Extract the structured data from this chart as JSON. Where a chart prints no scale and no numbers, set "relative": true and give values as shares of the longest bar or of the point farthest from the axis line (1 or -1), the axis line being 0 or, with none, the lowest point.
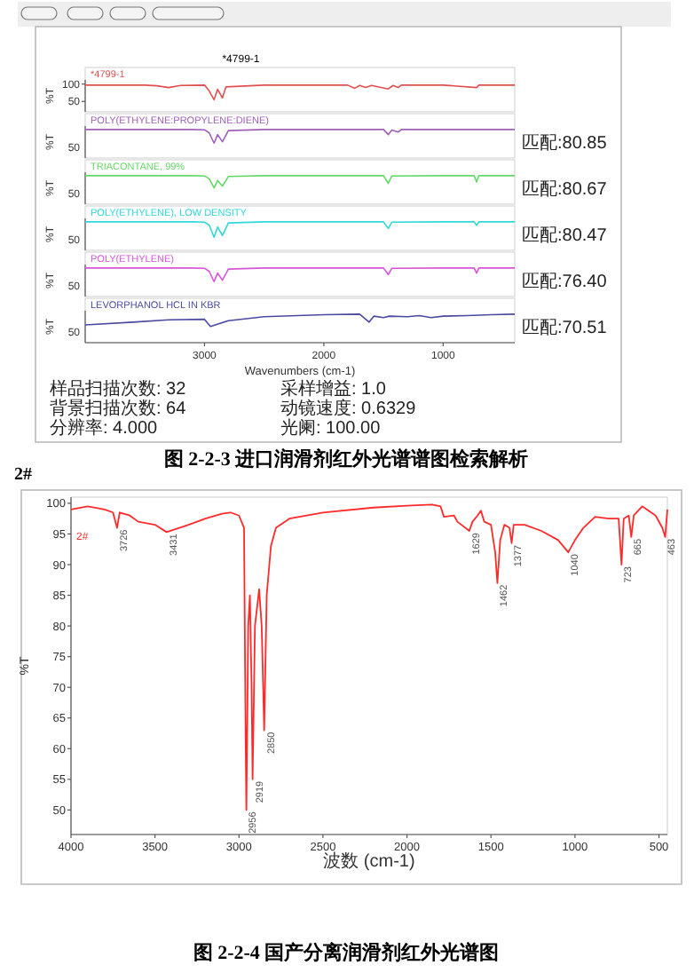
{
  "chart_data": [
    {
      "type": "line",
      "title": "*4799-1",
      "xlim": [
        4000,
        400
      ],
      "ylim": [
        20,
        112
      ],
      "yticks": [
        50,
        100
      ],
      "ylabel": "%T",
      "tick_labels": "y",
      "legend": "top left",
      "series": [
        {
          "name": "*4799-1",
          "color": "#e05050",
          "x": [
            4000,
            3500,
            3400,
            3300,
            3200,
            3000,
            2960,
            2920,
            2890,
            2850,
            2820,
            2500,
            1800,
            1740,
            1700,
            1650,
            1600,
            1460,
            1420,
            1377,
            1350,
            1000,
            720,
            700,
            400
          ],
          "values": [
            97,
            97,
            95,
            90,
            96,
            97,
            80,
            55,
            85,
            60,
            92,
            97,
            97,
            88,
            96,
            90,
            96,
            86,
            96,
            90,
            97,
            97,
            90,
            97,
            97
          ]
        }
      ],
      "annotations": [
        "样品扫描次数: 32",
        "背景扫描次数: 64",
        "分辨率: 4.000",
        "采样增益: 1.0",
        "动镜速度: 0.6329",
        "光阑: 100.00",
        "图 2-2-3 进口润滑剂红外光谱谱图检索解析"
      ]
    },
    {
      "type": "line",
      "relative": true,
      "xlim": [
        4000,
        400
      ],
      "ylabel": "%T",
      "tick_labels": "y",
      "legend": "top left",
      "series": [
        {
          "name": "POLY(ETHYLENE:PROPYLENE:DIENE)",
          "color": "#a060b8",
          "x": [
            4000,
            3100,
            3000,
            2960,
            2920,
            2890,
            2850,
            2800,
            2500,
            1500,
            1460,
            1430,
            1377,
            1350,
            400
          ],
          "values": [
            1,
            1,
            0.99,
            0.88,
            0.52,
            0.82,
            0.57,
            0.96,
            1,
            1,
            0.82,
            0.98,
            0.91,
            1,
            1
          ]
        }
      ],
      "annotations": [
        "50",
        "匹配:80.85"
      ]
    },
    {
      "type": "line",
      "relative": true,
      "xlim": [
        4000,
        400
      ],
      "ylabel": "%T",
      "tick_labels": "y",
      "legend": "top left",
      "series": [
        {
          "name": "TRIACONTANE, 99%",
          "color": "#66d866",
          "x": [
            4000,
            3100,
            3000,
            2960,
            2920,
            2890,
            2850,
            2800,
            2500,
            1500,
            1460,
            1430,
            1000,
            740,
            720,
            700,
            400
          ],
          "values": [
            1,
            1,
            0.99,
            0.89,
            0.57,
            0.83,
            0.63,
            0.97,
            1,
            1,
            0.73,
            0.99,
            1,
            1,
            0.78,
            1,
            1
          ]
        }
      ],
      "annotations": [
        "50",
        "匹配:80.67"
      ]
    },
    {
      "type": "line",
      "relative": true,
      "xlim": [
        4000,
        400
      ],
      "ylabel": "%T",
      "tick_labels": "y",
      "legend": "top left",
      "series": [
        {
          "name": "POLY(ETHYLENE), LOW DENSITY",
          "color": "#30d8d8",
          "x": [
            4000,
            3100,
            3000,
            2960,
            2920,
            2890,
            2850,
            2800,
            2500,
            1500,
            1460,
            1430,
            1000,
            740,
            720,
            700,
            400
          ],
          "values": [
            1,
            1,
            0.99,
            0.88,
            0.46,
            0.82,
            0.52,
            0.96,
            1,
            1,
            0.77,
            0.99,
            1,
            1,
            0.88,
            1,
            1
          ]
        }
      ],
      "annotations": [
        "50",
        "匹配:80.47"
      ]
    },
    {
      "type": "line",
      "relative": true,
      "xlim": [
        4000,
        400
      ],
      "ylabel": "%T",
      "tick_labels": "y",
      "legend": "top left",
      "series": [
        {
          "name": "POLY(ETHYLENE)",
          "color": "#d855d8",
          "x": [
            4000,
            3100,
            3000,
            2960,
            2920,
            2890,
            2850,
            2800,
            2500,
            1500,
            1460,
            1430,
            1000,
            740,
            720,
            700,
            400
          ],
          "values": [
            1,
            1,
            0.99,
            0.88,
            0.52,
            0.82,
            0.57,
            0.96,
            1,
            1,
            0.77,
            0.99,
            1,
            1,
            0.82,
            1,
            1
          ]
        }
      ],
      "annotations": [
        "50",
        "匹配:76.40"
      ]
    },
    {
      "type": "line",
      "relative": true,
      "xlim": [
        4000,
        400
      ],
      "xticks": [
        3000,
        2000,
        1000
      ],
      "xlabel": "Wavenumbers (cm-1)",
      "ylabel": "%T",
      "legend": "top left",
      "series": [
        {
          "name": "LEVORPHANOL HCL IN KBR",
          "color": "#4a4aa0",
          "x": [
            4000,
            3600,
            3300,
            3000,
            2950,
            2800,
            2500,
            2000,
            1700,
            1620,
            1580,
            1500,
            1450,
            1300,
            1200,
            1100,
            1000,
            800,
            600,
            400
          ],
          "values": [
            0.62,
            0.72,
            0.8,
            0.82,
            0.57,
            0.77,
            0.91,
            0.98,
            1,
            0.72,
            0.93,
            0.88,
            0.93,
            0.91,
            0.95,
            0.88,
            0.93,
            0.95,
            0.98,
            1
          ]
        }
      ],
      "annotations": [
        "50",
        "匹配:70.51"
      ]
    },
    {
      "type": "line",
      "title": "2#",
      "xlim": [
        4000,
        450
      ],
      "ylim": [
        46,
        101
      ],
      "xticks": [
        4000,
        3500,
        3000,
        2500,
        2000,
        1500,
        1000,
        500
      ],
      "yticks": [
        50,
        55,
        60,
        65,
        70,
        75,
        80,
        85,
        90,
        95,
        100
      ],
      "xlabel": "波数 (cm-1)",
      "ylabel": "%T",
      "legend": "top left",
      "series": [
        {
          "name": "2#",
          "color": "#ff2a2a",
          "x": [
            4000,
            3900,
            3800,
            3750,
            3726,
            3710,
            3650,
            3600,
            3500,
            3431,
            3300,
            3200,
            3100,
            3050,
            3000,
            2970,
            2960,
            2956,
            2945,
            2935,
            2925,
            2919,
            2905,
            2880,
            2865,
            2850,
            2835,
            2810,
            2780,
            2700,
            2500,
            2200,
            2000,
            1850,
            1800,
            1780,
            1720,
            1700,
            1629,
            1610,
            1580,
            1560,
            1540,
            1500,
            1475,
            1462,
            1445,
            1420,
            1390,
            1377,
            1365,
            1300,
            1200,
            1100,
            1040,
            1000,
            950,
            880,
            800,
            740,
            723,
            710,
            680,
            665,
            650,
            600,
            520,
            480,
            463,
            450
          ],
          "values": [
            99,
            99.5,
            99,
            98.5,
            96,
            98.5,
            98,
            97,
            96.5,
            95.3,
            96.5,
            97.5,
            98.3,
            98.5,
            98,
            96,
            60,
            50,
            80,
            85,
            70,
            55,
            80,
            86,
            80,
            63,
            85,
            93,
            96,
            97.5,
            98.5,
            99.3,
            99.6,
            99.8,
            99.5,
            97.8,
            98,
            97,
            95.5,
            97,
            98,
            98.8,
            97,
            96.5,
            92,
            87,
            94,
            96.5,
            96,
            93.5,
            96.5,
            96.5,
            95.5,
            94,
            92,
            94,
            96,
            97.8,
            97.5,
            97.5,
            90,
            97.5,
            98,
            94.5,
            98,
            99.5,
            98,
            96,
            94.5,
            99
          ]
        }
      ],
      "annotations": [
        {
          "text": "3726",
          "x": 3726,
          "y": 96
        },
        {
          "text": "3431",
          "x": 3431,
          "y": 95.3
        },
        {
          "text": "2956",
          "x": 2956,
          "y": 50
        },
        {
          "text": "2919",
          "x": 2919,
          "y": 55
        },
        {
          "text": "2850",
          "x": 2850,
          "y": 63
        },
        {
          "text": "1629",
          "x": 1629,
          "y": 95.5
        },
        {
          "text": "1462",
          "x": 1462,
          "y": 87
        },
        {
          "text": "1377",
          "x": 1377,
          "y": 93.5
        },
        {
          "text": "1040",
          "x": 1040,
          "y": 92
        },
        {
          "text": "723",
          "x": 723,
          "y": 90
        },
        {
          "text": "665",
          "x": 665,
          "y": 94.5
        },
        {
          "text": "463",
          "x": 463,
          "y": 94.5
        },
        "图 2-2-4 国产分离润滑剂红外光谱图"
      ]
    }
  ]
}
